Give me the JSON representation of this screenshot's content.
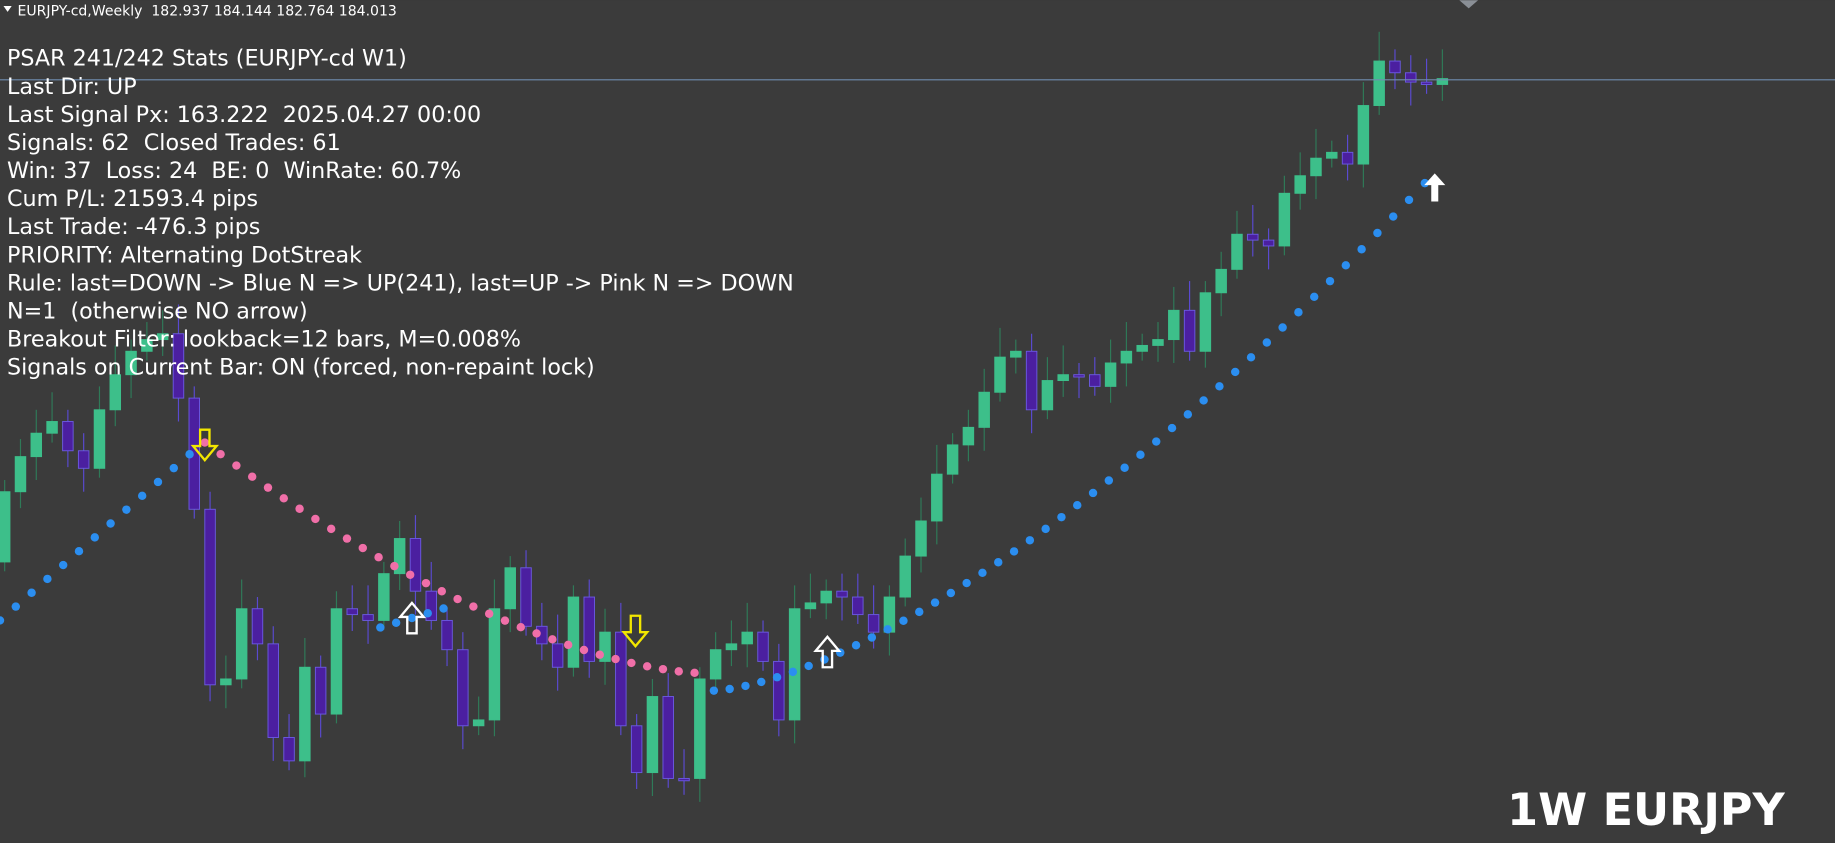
{
  "header": {
    "symbol_line": "EURJPY-cd,Weekly  182.937 184.144 182.764 184.013"
  },
  "stats": {
    "title": "PSAR 241/242 Stats (EURJPY-cd W1)",
    "lines": [
      "Last Dir: UP",
      "Last Signal Px: 163.222  2025.04.27 00:00",
      "Signals: 62  Closed Trades: 61",
      "Win: 37  Loss: 24  BE: 0  WinRate: 60.7%",
      "Cum P/L: 21593.4 pips",
      "Last Trade: -476.3 pips",
      "PRIORITY: Alternating DotStreak",
      "Rule: last=DOWN -> Blue N => UP(241), last=UP -> Pink N => DOWN",
      "N=1  (otherwise NO arrow)",
      "Breakout Filter: lookback=12 bars, M=0.008%",
      "Signals on Current Bar: ON (forced, non-repaint lock)"
    ]
  },
  "watermark": "1W EURJPY"
}
